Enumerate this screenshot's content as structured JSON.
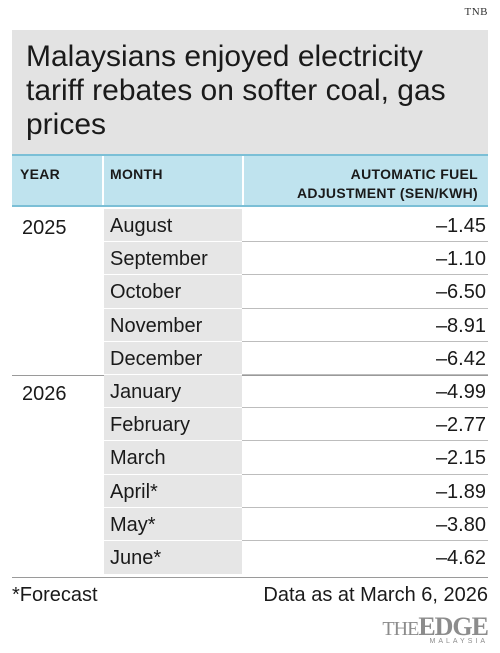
{
  "source": "TNB",
  "title": "Malaysians enjoyed electricity tariff rebates on softer coal, gas prices",
  "headers": {
    "year": "YEAR",
    "month": "MONTH",
    "afa_line1": "AUTOMATIC FUEL",
    "afa_line2": "ADJUSTMENT (SEN/KWH)"
  },
  "footnote": "*Forecast",
  "as_of": "Data as at March 6, 2026",
  "logo": {
    "the": "THE",
    "edge": "EDGE",
    "sub": "MALAYSIA"
  },
  "chart_data": {
    "type": "table",
    "title": "Malaysians enjoyed electricity tariff rebates on softer coal, gas prices",
    "columns": [
      "YEAR",
      "MONTH",
      "AUTOMATIC FUEL ADJUSTMENT (SEN/KWH)"
    ],
    "rows": [
      {
        "year": "2025",
        "month": "August",
        "value": "–1.45"
      },
      {
        "year": "",
        "month": "September",
        "value": "–1.10"
      },
      {
        "year": "",
        "month": "October",
        "value": "–6.50"
      },
      {
        "year": "",
        "month": "November",
        "value": "–8.91"
      },
      {
        "year": "",
        "month": "December",
        "value": "–6.42"
      },
      {
        "year": "2026",
        "month": "January",
        "value": "–4.99"
      },
      {
        "year": "",
        "month": "February",
        "value": "–2.77"
      },
      {
        "year": "",
        "month": "March",
        "value": "–2.15"
      },
      {
        "year": "",
        "month": "April*",
        "value": "–1.89"
      },
      {
        "year": "",
        "month": "May*",
        "value": "–3.80"
      },
      {
        "year": "",
        "month": "June*",
        "value": "–4.62"
      }
    ]
  }
}
